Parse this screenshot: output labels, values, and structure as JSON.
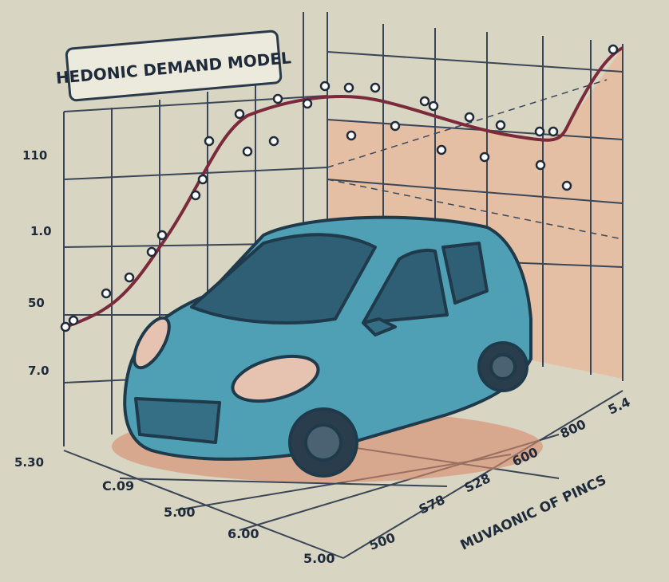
{
  "title": "HEDONIC DEMAND MODEL",
  "left_labels": [
    "110",
    "1.0",
    "50",
    "7.0",
    "5.30"
  ],
  "bottom_labels": [
    "C.09",
    "5.00",
    "6.00",
    "5.00"
  ],
  "right_labels": [
    "500",
    "S78",
    "S28",
    "600",
    "800",
    "5.4"
  ],
  "axis_label": "MUVAONIC OF PINCS"
}
